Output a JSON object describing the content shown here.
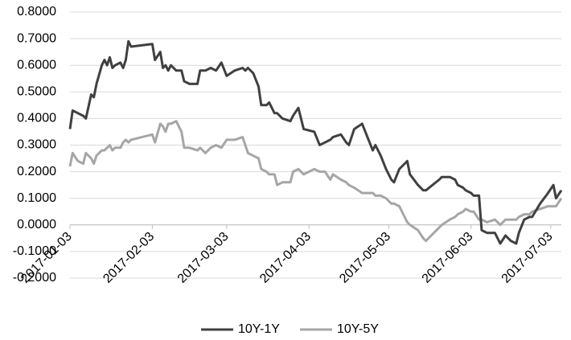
{
  "chart_data": {
    "type": "line",
    "x": [
      "2017-01-03",
      "2017-01-04",
      "2017-01-06",
      "2017-01-08",
      "2017-01-09",
      "2017-01-11",
      "2017-01-12",
      "2017-01-13",
      "2017-01-15",
      "2017-01-16",
      "2017-01-17",
      "2017-01-18",
      "2017-01-19",
      "2017-01-20",
      "2017-01-22",
      "2017-01-23",
      "2017-01-24",
      "2017-01-25",
      "2017-01-26",
      "2017-02-03",
      "2017-02-04",
      "2017-02-06",
      "2017-02-07",
      "2017-02-08",
      "2017-02-09",
      "2017-02-10",
      "2017-02-12",
      "2017-02-14",
      "2017-02-15",
      "2017-02-17",
      "2017-02-20",
      "2017-02-21",
      "2017-02-23",
      "2017-02-25",
      "2017-02-27",
      "2017-03-01",
      "2017-03-03",
      "2017-03-06",
      "2017-03-09",
      "2017-03-10",
      "2017-03-11",
      "2017-03-13",
      "2017-03-15",
      "2017-03-16",
      "2017-03-18",
      "2017-03-19",
      "2017-03-21",
      "2017-03-22",
      "2017-03-24",
      "2017-03-27",
      "2017-03-28",
      "2017-03-30",
      "2017-04-01",
      "2017-04-05",
      "2017-04-07",
      "2017-04-09",
      "2017-04-11",
      "2017-04-12",
      "2017-04-15",
      "2017-04-17",
      "2017-04-18",
      "2017-04-20",
      "2017-04-23",
      "2017-04-25",
      "2017-04-27",
      "2017-04-28",
      "2017-04-30",
      "2017-05-02",
      "2017-05-04",
      "2017-05-05",
      "2017-05-07",
      "2017-05-10",
      "2017-05-11",
      "2017-05-14",
      "2017-05-16",
      "2017-05-17",
      "2017-05-22",
      "2017-05-23",
      "2017-05-26",
      "2017-05-28",
      "2017-05-29",
      "2017-05-31",
      "2017-06-01",
      "2017-06-03",
      "2017-06-04",
      "2017-06-06",
      "2017-06-07",
      "2017-06-09",
      "2017-06-12",
      "2017-06-14",
      "2017-06-16",
      "2017-06-18",
      "2017-06-20",
      "2017-06-21",
      "2017-06-23",
      "2017-06-25",
      "2017-06-26",
      "2017-06-29",
      "2017-07-02",
      "2017-07-04",
      "2017-07-05",
      "2017-07-07"
    ],
    "series": [
      {
        "name": "10Y-1Y",
        "color": "#404040",
        "values": [
          0.36,
          0.43,
          0.42,
          0.41,
          0.4,
          0.49,
          0.48,
          0.53,
          0.6,
          0.62,
          0.6,
          0.63,
          0.59,
          0.6,
          0.61,
          0.59,
          0.62,
          0.69,
          0.67,
          0.68,
          0.62,
          0.65,
          0.59,
          0.6,
          0.58,
          0.6,
          0.58,
          0.58,
          0.54,
          0.53,
          0.53,
          0.58,
          0.58,
          0.59,
          0.58,
          0.61,
          0.56,
          0.58,
          0.59,
          0.58,
          0.59,
          0.57,
          0.52,
          0.45,
          0.45,
          0.46,
          0.42,
          0.42,
          0.4,
          0.39,
          0.41,
          0.44,
          0.36,
          0.35,
          0.3,
          0.31,
          0.32,
          0.33,
          0.34,
          0.31,
          0.3,
          0.36,
          0.38,
          0.33,
          0.28,
          0.3,
          0.26,
          0.21,
          0.17,
          0.16,
          0.21,
          0.24,
          0.19,
          0.15,
          0.13,
          0.13,
          0.17,
          0.18,
          0.18,
          0.17,
          0.15,
          0.14,
          0.13,
          0.12,
          0.11,
          0.11,
          -0.02,
          -0.03,
          -0.03,
          -0.07,
          -0.04,
          -0.06,
          -0.07,
          -0.03,
          0.02,
          0.03,
          0.03,
          0.08,
          0.12,
          0.15,
          0.1,
          0.13
        ]
      },
      {
        "name": "10Y-5Y",
        "color": "#a6a6a6",
        "values": [
          0.22,
          0.27,
          0.24,
          0.23,
          0.27,
          0.25,
          0.23,
          0.26,
          0.28,
          0.28,
          0.29,
          0.3,
          0.28,
          0.29,
          0.29,
          0.31,
          0.32,
          0.31,
          0.32,
          0.34,
          0.31,
          0.38,
          0.37,
          0.35,
          0.38,
          0.38,
          0.39,
          0.35,
          0.29,
          0.29,
          0.28,
          0.29,
          0.27,
          0.29,
          0.3,
          0.29,
          0.32,
          0.32,
          0.33,
          0.3,
          0.27,
          0.26,
          0.25,
          0.21,
          0.2,
          0.19,
          0.19,
          0.15,
          0.16,
          0.16,
          0.2,
          0.21,
          0.19,
          0.21,
          0.2,
          0.2,
          0.17,
          0.19,
          0.17,
          0.16,
          0.15,
          0.14,
          0.12,
          0.12,
          0.12,
          0.11,
          0.11,
          0.1,
          0.08,
          0.08,
          0.07,
          0.01,
          0.0,
          -0.02,
          -0.05,
          -0.06,
          -0.01,
          0.0,
          0.02,
          0.03,
          0.04,
          0.05,
          0.06,
          0.05,
          0.05,
          0.02,
          0.02,
          0.01,
          0.02,
          0.0,
          0.02,
          0.02,
          0.02,
          0.03,
          0.04,
          0.04,
          0.05,
          0.06,
          0.07,
          0.07,
          0.07,
          0.1
        ]
      }
    ],
    "xlim": [
      "2017-01-03",
      "2017-07-07"
    ],
    "xticks": [
      "2017-01-03",
      "2017-02-03",
      "2017-03-03",
      "2017-04-03",
      "2017-05-03",
      "2017-06-03",
      "2017-07-03"
    ],
    "ylim": [
      -0.2,
      0.8
    ],
    "yticks": [
      {
        "value": -0.2,
        "label": "-0.2000"
      },
      {
        "value": -0.1,
        "label": "-0.1000"
      },
      {
        "value": 0,
        "label": "0.0000"
      },
      {
        "value": 0.1,
        "label": "0.1000"
      },
      {
        "value": 0.2,
        "label": "0.2000"
      },
      {
        "value": 0.3,
        "label": "0.3000"
      },
      {
        "value": 0.4,
        "label": "0.4000"
      },
      {
        "value": 0.5,
        "label": "0.5000"
      },
      {
        "value": 0.6,
        "label": "0.6000"
      },
      {
        "value": 0.7,
        "label": "0.7000"
      },
      {
        "value": 0.8,
        "label": "0.8000"
      }
    ],
    "grid": true,
    "legend": "bottom"
  }
}
